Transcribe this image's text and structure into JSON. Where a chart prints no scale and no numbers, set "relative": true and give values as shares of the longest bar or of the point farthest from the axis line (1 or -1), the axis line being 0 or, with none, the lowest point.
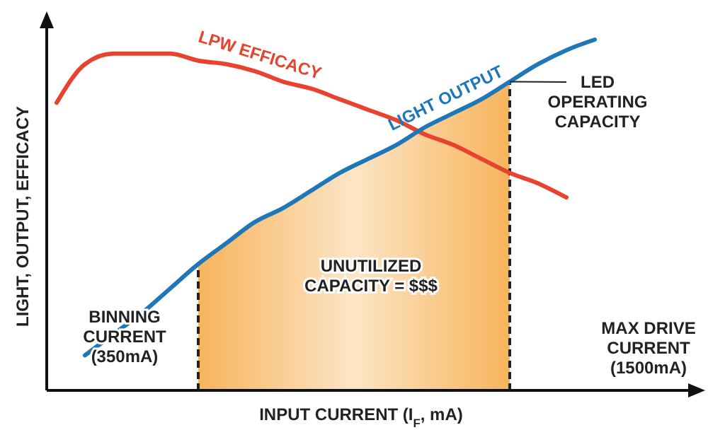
{
  "chart_data": {
    "type": "line",
    "relative": true,
    "xlabel": "INPUT CURRENT (I$_{F}$, mA)",
    "ylabel": "LIGHT, OUTPUT, EFFICACY",
    "categories": [
      null,
      null,
      null,
      null,
      null,
      null,
      null,
      null,
      null,
      null,
      null,
      null,
      null,
      null,
      null,
      null,
      null,
      null,
      null,
      null
    ],
    "series": [
      {
        "type": "area",
        "color": "#f7b45c",
        "values": [
          null,
          null,
          null,
          null,
          null,
          0.36,
          0.42,
          0.48,
          0.52,
          0.57,
          0.62,
          0.66,
          0.7,
          0.75,
          0.79,
          0.83,
          0.88,
          null,
          null,
          null
        ]
      },
      {
        "name": "LPW EFFICACY",
        "color": "#e8432e",
        "values": [
          0.82,
          0.93,
          0.96,
          0.96,
          0.96,
          0.94,
          0.93,
          0.91,
          0.88,
          0.86,
          0.83,
          0.8,
          0.77,
          0.73,
          0.7,
          0.66,
          0.62,
          0.59,
          0.55,
          null
        ]
      },
      {
        "name": "LIGHT OUTPUT",
        "color": "#1f77b8",
        "values": [
          null,
          0.1,
          0.16,
          0.22,
          0.29,
          0.36,
          0.42,
          0.48,
          0.52,
          0.57,
          0.62,
          0.66,
          0.7,
          0.75,
          0.79,
          0.83,
          0.88,
          0.93,
          0.97,
          1
        ]
      }
    ],
    "annotations": [
      "BINNING\nCURRENT\n(350mA)",
      "UNUTILIZED\nCAPACITY = $$$",
      "LED\nOPERATING\nCAPACITY",
      "MAX DRIVE\nCURRENT\n(1500mA)"
    ],
    "marker": "none",
    "line_style": "solid"
  }
}
